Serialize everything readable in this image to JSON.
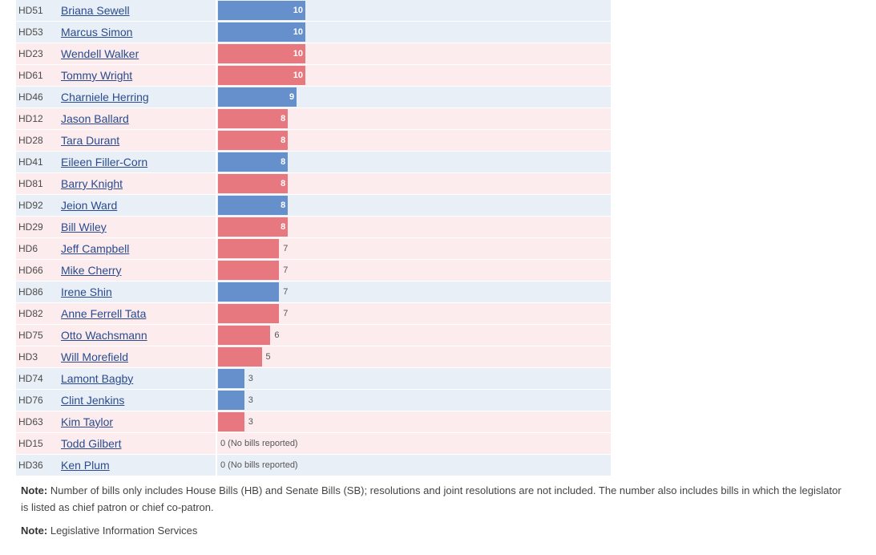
{
  "chart_data": {
    "type": "bar",
    "orientation": "horizontal",
    "colors": {
      "D": "#6690cc",
      "R": "#e8787f",
      "D_row": "#e9eff7",
      "R_row": "#fcecee"
    },
    "no_bills_label": "0 (No bills reported)",
    "rows": [
      {
        "district": "HD51",
        "name": "Briana Sewell",
        "party": "D",
        "value": 10
      },
      {
        "district": "HD53",
        "name": "Marcus Simon",
        "party": "D",
        "value": 10
      },
      {
        "district": "HD23",
        "name": "Wendell Walker",
        "party": "R",
        "value": 10
      },
      {
        "district": "HD61",
        "name": "Tommy Wright",
        "party": "R",
        "value": 10
      },
      {
        "district": "HD46",
        "name": "Charniele Herring",
        "party": "D",
        "value": 9
      },
      {
        "district": "HD12",
        "name": "Jason Ballard",
        "party": "R",
        "value": 8
      },
      {
        "district": "HD28",
        "name": "Tara Durant",
        "party": "R",
        "value": 8
      },
      {
        "district": "HD41",
        "name": "Eileen Filler-Corn",
        "party": "D",
        "value": 8
      },
      {
        "district": "HD81",
        "name": "Barry Knight",
        "party": "R",
        "value": 8
      },
      {
        "district": "HD92",
        "name": "Jeion Ward",
        "party": "D",
        "value": 8
      },
      {
        "district": "HD29",
        "name": "Bill Wiley",
        "party": "R",
        "value": 8
      },
      {
        "district": "HD6",
        "name": "Jeff Campbell",
        "party": "R",
        "value": 7
      },
      {
        "district": "HD66",
        "name": "Mike Cherry",
        "party": "R",
        "value": 7
      },
      {
        "district": "HD86",
        "name": "Irene Shin",
        "party": "D",
        "value": 7
      },
      {
        "district": "HD82",
        "name": "Anne Ferrell Tata",
        "party": "R",
        "value": 7
      },
      {
        "district": "HD75",
        "name": "Otto Wachsmann",
        "party": "R",
        "value": 6
      },
      {
        "district": "HD3",
        "name": "Will Morefield",
        "party": "R",
        "value": 5
      },
      {
        "district": "HD74",
        "name": "Lamont Bagby",
        "party": "D",
        "value": 3
      },
      {
        "district": "HD76",
        "name": "Clint Jenkins",
        "party": "D",
        "value": 3
      },
      {
        "district": "HD63",
        "name": "Kim Taylor",
        "party": "R",
        "value": 3
      },
      {
        "district": "HD15",
        "name": "Todd Gilbert",
        "party": "R",
        "value": 0
      },
      {
        "district": "HD36",
        "name": "Ken Plum",
        "party": "D",
        "value": 0
      }
    ]
  },
  "notes": {
    "note_label": "Note:",
    "note_text": "Number of bills only includes House Bills (HB) and Senate Bills (SB); resolutions and joint resolutions are not included. The number also includes bills in which the legislator is listed as chief patron or chief co-patron.",
    "source_label": "Note:",
    "source_text": "Legislative Information Services"
  }
}
